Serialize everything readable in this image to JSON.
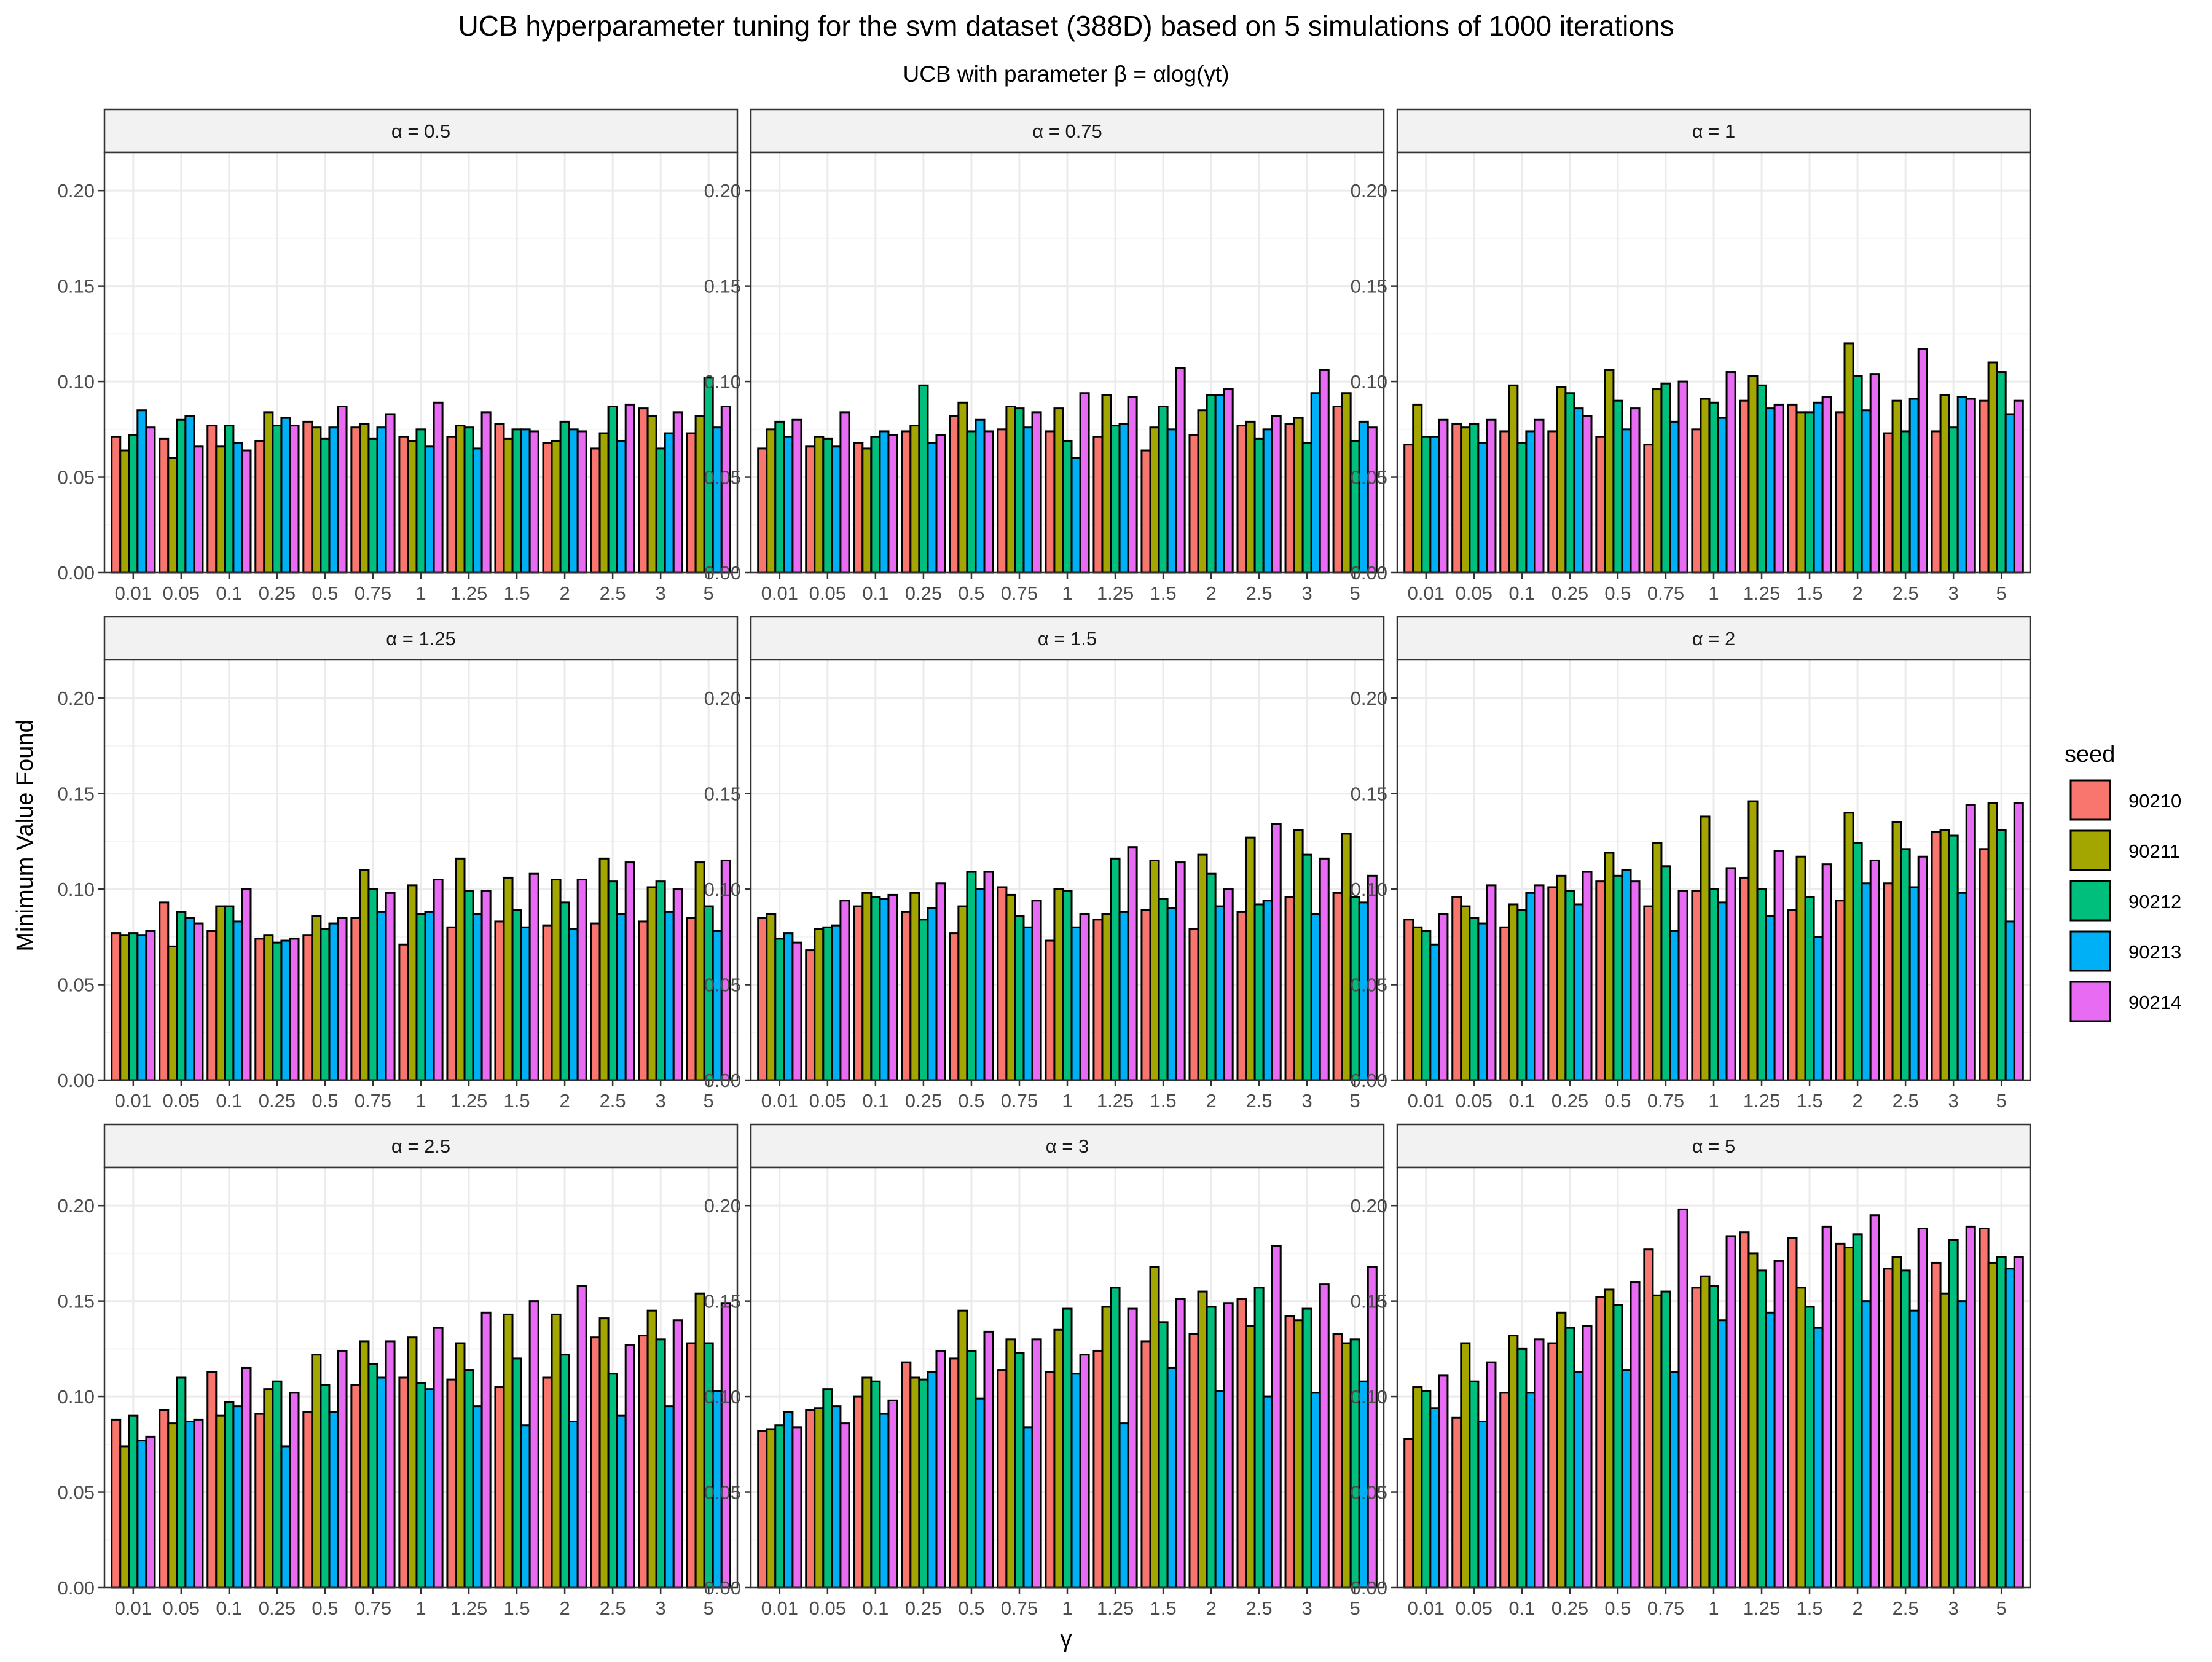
{
  "chart_data": {
    "type": "bar",
    "title": "UCB hyperparameter tuning for the svm dataset (388D) based on 5 simulations of 1000 iterations",
    "subtitle": "UCB with parameter β = αlog(γt)",
    "xlabel": "γ",
    "ylabel": "Minimum Value Found",
    "ylim": [
      0,
      0.22
    ],
    "y_ticks": [
      "0.00",
      "0.05",
      "0.10",
      "0.15",
      "0.20"
    ],
    "grid": true,
    "legend": {
      "title": "seed",
      "position": "right",
      "entries": [
        "90210",
        "90211",
        "90212",
        "90213",
        "90214"
      ]
    },
    "series_colors": [
      "#F8766D",
      "#A3A500",
      "#00BF7D",
      "#00B0F6",
      "#E76BF3"
    ],
    "bar_outline": "#000000",
    "categories": [
      "0.01",
      "0.05",
      "0.1",
      "0.25",
      "0.5",
      "0.75",
      "1",
      "1.25",
      "1.5",
      "2",
      "2.5",
      "3",
      "5"
    ],
    "panels": [
      {
        "label": "α = 0.5",
        "values": [
          [
            0.071,
            0.064,
            0.072,
            0.085,
            0.076
          ],
          [
            0.07,
            0.06,
            0.08,
            0.082,
            0.066
          ],
          [
            0.077,
            0.066,
            0.077,
            0.068,
            0.064
          ],
          [
            0.069,
            0.084,
            0.077,
            0.081,
            0.077
          ],
          [
            0.079,
            0.076,
            0.07,
            0.076,
            0.087
          ],
          [
            0.076,
            0.078,
            0.07,
            0.076,
            0.083
          ],
          [
            0.071,
            0.069,
            0.075,
            0.066,
            0.089
          ],
          [
            0.071,
            0.077,
            0.076,
            0.065,
            0.084
          ],
          [
            0.078,
            0.07,
            0.075,
            0.075,
            0.074
          ],
          [
            0.068,
            0.069,
            0.079,
            0.075,
            0.074
          ],
          [
            0.065,
            0.073,
            0.087,
            0.069,
            0.088
          ],
          [
            0.086,
            0.082,
            0.065,
            0.073,
            0.084
          ],
          [
            0.073,
            0.082,
            0.102,
            0.076,
            0.087
          ]
        ]
      },
      {
        "label": "α = 0.75",
        "values": [
          [
            0.065,
            0.075,
            0.079,
            0.071,
            0.08
          ],
          [
            0.066,
            0.071,
            0.07,
            0.066,
            0.084
          ],
          [
            0.068,
            0.065,
            0.071,
            0.074,
            0.072
          ],
          [
            0.074,
            0.077,
            0.098,
            0.068,
            0.072
          ],
          [
            0.082,
            0.089,
            0.074,
            0.08,
            0.074
          ],
          [
            0.075,
            0.087,
            0.086,
            0.076,
            0.084
          ],
          [
            0.074,
            0.086,
            0.069,
            0.06,
            0.094
          ],
          [
            0.071,
            0.093,
            0.077,
            0.078,
            0.092
          ],
          [
            0.064,
            0.076,
            0.087,
            0.075,
            0.107
          ],
          [
            0.072,
            0.085,
            0.093,
            0.093,
            0.096
          ],
          [
            0.077,
            0.079,
            0.07,
            0.075,
            0.082
          ],
          [
            0.078,
            0.081,
            0.068,
            0.094,
            0.106
          ],
          [
            0.087,
            0.094,
            0.069,
            0.079,
            0.076
          ]
        ]
      },
      {
        "label": "α = 1",
        "values": [
          [
            0.067,
            0.088,
            0.071,
            0.071,
            0.08
          ],
          [
            0.078,
            0.076,
            0.078,
            0.068,
            0.08
          ],
          [
            0.074,
            0.098,
            0.068,
            0.074,
            0.08
          ],
          [
            0.074,
            0.097,
            0.094,
            0.086,
            0.082
          ],
          [
            0.071,
            0.106,
            0.09,
            0.075,
            0.086
          ],
          [
            0.067,
            0.096,
            0.099,
            0.079,
            0.1
          ],
          [
            0.075,
            0.091,
            0.089,
            0.081,
            0.105
          ],
          [
            0.09,
            0.103,
            0.098,
            0.086,
            0.088
          ],
          [
            0.088,
            0.084,
            0.084,
            0.089,
            0.092
          ],
          [
            0.084,
            0.12,
            0.103,
            0.085,
            0.104
          ],
          [
            0.073,
            0.09,
            0.074,
            0.091,
            0.117
          ],
          [
            0.074,
            0.093,
            0.076,
            0.092,
            0.091
          ],
          [
            0.09,
            0.11,
            0.105,
            0.083,
            0.09
          ]
        ]
      },
      {
        "label": "α = 1.25",
        "values": [
          [
            0.077,
            0.076,
            0.077,
            0.076,
            0.078
          ],
          [
            0.093,
            0.07,
            0.088,
            0.085,
            0.082
          ],
          [
            0.078,
            0.091,
            0.091,
            0.083,
            0.1
          ],
          [
            0.074,
            0.076,
            0.072,
            0.073,
            0.074
          ],
          [
            0.076,
            0.086,
            0.079,
            0.082,
            0.085
          ],
          [
            0.085,
            0.11,
            0.1,
            0.088,
            0.098
          ],
          [
            0.071,
            0.102,
            0.087,
            0.088,
            0.105
          ],
          [
            0.08,
            0.116,
            0.099,
            0.087,
            0.099
          ],
          [
            0.083,
            0.106,
            0.089,
            0.08,
            0.108
          ],
          [
            0.081,
            0.105,
            0.093,
            0.079,
            0.105
          ],
          [
            0.082,
            0.116,
            0.104,
            0.087,
            0.114
          ],
          [
            0.083,
            0.101,
            0.104,
            0.088,
            0.1
          ],
          [
            0.085,
            0.114,
            0.091,
            0.078,
            0.115
          ]
        ]
      },
      {
        "label": "α = 1.5",
        "values": [
          [
            0.085,
            0.087,
            0.074,
            0.077,
            0.072
          ],
          [
            0.068,
            0.079,
            0.08,
            0.081,
            0.094
          ],
          [
            0.091,
            0.098,
            0.096,
            0.095,
            0.097
          ],
          [
            0.088,
            0.098,
            0.084,
            0.09,
            0.103
          ],
          [
            0.077,
            0.091,
            0.109,
            0.1,
            0.109
          ],
          [
            0.101,
            0.097,
            0.086,
            0.08,
            0.094
          ],
          [
            0.073,
            0.1,
            0.099,
            0.08,
            0.087
          ],
          [
            0.084,
            0.087,
            0.116,
            0.088,
            0.122
          ],
          [
            0.089,
            0.115,
            0.095,
            0.09,
            0.114
          ],
          [
            0.079,
            0.118,
            0.108,
            0.091,
            0.1
          ],
          [
            0.088,
            0.127,
            0.092,
            0.094,
            0.134
          ],
          [
            0.096,
            0.131,
            0.118,
            0.087,
            0.116
          ],
          [
            0.098,
            0.129,
            0.096,
            0.093,
            0.107
          ]
        ]
      },
      {
        "label": "α = 2",
        "values": [
          [
            0.084,
            0.08,
            0.078,
            0.071,
            0.087
          ],
          [
            0.096,
            0.091,
            0.085,
            0.082,
            0.102
          ],
          [
            0.08,
            0.092,
            0.089,
            0.098,
            0.102
          ],
          [
            0.101,
            0.107,
            0.099,
            0.092,
            0.109
          ],
          [
            0.104,
            0.119,
            0.107,
            0.11,
            0.104
          ],
          [
            0.091,
            0.124,
            0.112,
            0.078,
            0.099
          ],
          [
            0.099,
            0.138,
            0.1,
            0.093,
            0.111
          ],
          [
            0.106,
            0.146,
            0.1,
            0.086,
            0.12
          ],
          [
            0.089,
            0.117,
            0.096,
            0.075,
            0.113
          ],
          [
            0.094,
            0.14,
            0.124,
            0.103,
            0.115
          ],
          [
            0.103,
            0.135,
            0.121,
            0.101,
            0.117
          ],
          [
            0.13,
            0.131,
            0.128,
            0.098,
            0.144
          ],
          [
            0.121,
            0.145,
            0.131,
            0.083,
            0.145
          ]
        ]
      },
      {
        "label": "α = 2.5",
        "values": [
          [
            0.088,
            0.074,
            0.09,
            0.077,
            0.079
          ],
          [
            0.093,
            0.086,
            0.11,
            0.087,
            0.088
          ],
          [
            0.113,
            0.09,
            0.097,
            0.095,
            0.115
          ],
          [
            0.091,
            0.104,
            0.108,
            0.074,
            0.102
          ],
          [
            0.092,
            0.122,
            0.106,
            0.092,
            0.124
          ],
          [
            0.106,
            0.129,
            0.117,
            0.11,
            0.129
          ],
          [
            0.11,
            0.131,
            0.107,
            0.104,
            0.136
          ],
          [
            0.109,
            0.128,
            0.114,
            0.095,
            0.144
          ],
          [
            0.105,
            0.143,
            0.12,
            0.085,
            0.15
          ],
          [
            0.11,
            0.143,
            0.122,
            0.087,
            0.158
          ],
          [
            0.131,
            0.141,
            0.112,
            0.09,
            0.127
          ],
          [
            0.132,
            0.145,
            0.13,
            0.095,
            0.14
          ],
          [
            0.128,
            0.154,
            0.128,
            0.103,
            0.149
          ]
        ]
      },
      {
        "label": "α = 3",
        "values": [
          [
            0.082,
            0.083,
            0.085,
            0.092,
            0.084
          ],
          [
            0.093,
            0.094,
            0.104,
            0.095,
            0.086
          ],
          [
            0.1,
            0.11,
            0.108,
            0.091,
            0.098
          ],
          [
            0.118,
            0.11,
            0.109,
            0.113,
            0.124
          ],
          [
            0.12,
            0.145,
            0.124,
            0.099,
            0.134
          ],
          [
            0.114,
            0.13,
            0.123,
            0.084,
            0.13
          ],
          [
            0.113,
            0.135,
            0.146,
            0.112,
            0.122
          ],
          [
            0.124,
            0.147,
            0.157,
            0.086,
            0.146
          ],
          [
            0.129,
            0.168,
            0.139,
            0.115,
            0.151
          ],
          [
            0.133,
            0.155,
            0.147,
            0.103,
            0.149
          ],
          [
            0.151,
            0.137,
            0.157,
            0.1,
            0.179
          ],
          [
            0.142,
            0.14,
            0.146,
            0.102,
            0.159
          ],
          [
            0.133,
            0.128,
            0.13,
            0.108,
            0.168
          ]
        ]
      },
      {
        "label": "α = 5",
        "values": [
          [
            0.078,
            0.105,
            0.103,
            0.094,
            0.111
          ],
          [
            0.089,
            0.128,
            0.108,
            0.087,
            0.118
          ],
          [
            0.102,
            0.132,
            0.125,
            0.102,
            0.13
          ],
          [
            0.128,
            0.144,
            0.136,
            0.113,
            0.137
          ],
          [
            0.152,
            0.156,
            0.148,
            0.114,
            0.16
          ],
          [
            0.177,
            0.153,
            0.155,
            0.113,
            0.198
          ],
          [
            0.157,
            0.163,
            0.158,
            0.14,
            0.184
          ],
          [
            0.186,
            0.175,
            0.166,
            0.144,
            0.171
          ],
          [
            0.183,
            0.157,
            0.147,
            0.136,
            0.189
          ],
          [
            0.18,
            0.178,
            0.185,
            0.15,
            0.195
          ],
          [
            0.167,
            0.173,
            0.166,
            0.145,
            0.188
          ],
          [
            0.17,
            0.154,
            0.182,
            0.15,
            0.189
          ],
          [
            0.188,
            0.17,
            0.173,
            0.167,
            0.173
          ]
        ]
      }
    ]
  }
}
